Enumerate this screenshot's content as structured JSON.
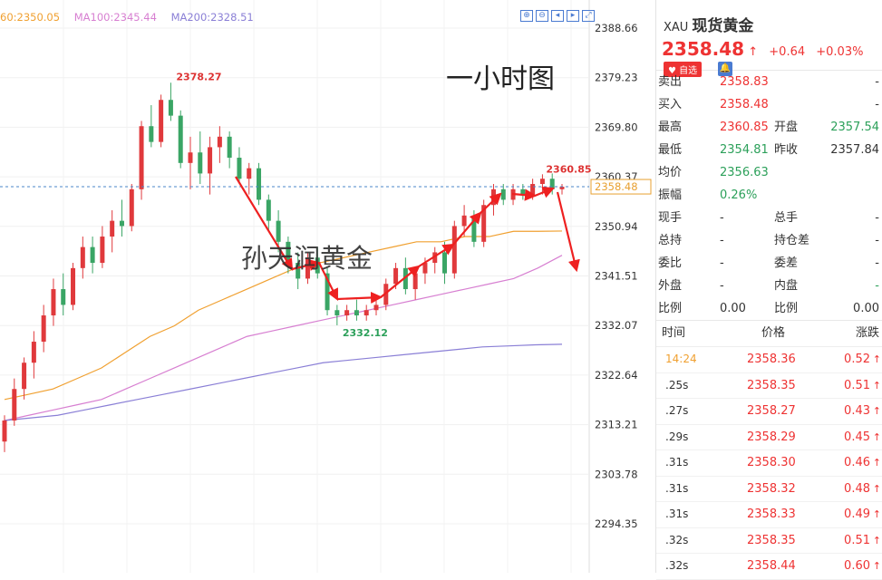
{
  "chart_data": {
    "type": "candlestick",
    "title": "一小时图",
    "watermark": "孙天润黄金",
    "ma_legend": [
      {
        "label": "60:2350.05",
        "color": "#f0a030"
      },
      {
        "label": "MA100:2345.44",
        "color": "#d77fd1"
      },
      {
        "label": "MA200:2328.51",
        "color": "#8a7fd6"
      }
    ],
    "y_ticks": [
      "2388.66",
      "2379.23",
      "2369.80",
      "2360.37",
      "2350.94",
      "2341.51",
      "2332.07",
      "2322.64",
      "2313.21",
      "2303.78",
      "2294.35"
    ],
    "ylim": [
      2294.35,
      2388.66
    ],
    "current_price_label": "2358.48",
    "current_price": 2358.48,
    "annotations": {
      "high": "2378.27",
      "low": "2332.12",
      "recent_high": "2360.85"
    },
    "candles": [
      [
        2310,
        2315,
        2308,
        2314
      ],
      [
        2314,
        2322,
        2313,
        2320
      ],
      [
        2320,
        2326,
        2318,
        2325
      ],
      [
        2325,
        2331,
        2322,
        2329
      ],
      [
        2329,
        2336,
        2327,
        2334
      ],
      [
        2334,
        2341,
        2332,
        2339
      ],
      [
        2339,
        2342,
        2334,
        2336
      ],
      [
        2336,
        2344,
        2335,
        2343
      ],
      [
        2343,
        2349,
        2341,
        2347
      ],
      [
        2347,
        2349,
        2342,
        2344
      ],
      [
        2344,
        2351,
        2343,
        2349
      ],
      [
        2349,
        2354,
        2346,
        2352
      ],
      [
        2352,
        2356,
        2349,
        2351
      ],
      [
        2351,
        2359,
        2350,
        2358
      ],
      [
        2358,
        2371,
        2356,
        2370
      ],
      [
        2370,
        2374,
        2366,
        2367
      ],
      [
        2367,
        2376,
        2366,
        2375
      ],
      [
        2375,
        2378.27,
        2371,
        2372
      ],
      [
        2372,
        2373,
        2362,
        2363
      ],
      [
        2363,
        2368,
        2358,
        2365
      ],
      [
        2365,
        2369,
        2359,
        2361
      ],
      [
        2361,
        2368,
        2357,
        2366
      ],
      [
        2366,
        2370,
        2363,
        2368
      ],
      [
        2368,
        2369,
        2362,
        2364
      ],
      [
        2364,
        2366,
        2359,
        2360
      ],
      [
        2360,
        2363,
        2357,
        2362
      ],
      [
        2362,
        2363,
        2355,
        2356
      ],
      [
        2356,
        2357,
        2350,
        2352
      ],
      [
        2352,
        2354,
        2346,
        2348
      ],
      [
        2348,
        2349,
        2342,
        2344
      ],
      [
        2344,
        2346,
        2339,
        2341
      ],
      [
        2341,
        2346,
        2340,
        2345
      ],
      [
        2345,
        2347,
        2341,
        2342
      ],
      [
        2342,
        2343,
        2334,
        2335
      ],
      [
        2335,
        2336,
        2332.12,
        2334
      ],
      [
        2334,
        2336,
        2333,
        2335
      ],
      [
        2335,
        2337,
        2333,
        2334
      ],
      [
        2334,
        2336,
        2333,
        2335
      ],
      [
        2335,
        2337,
        2334,
        2336
      ],
      [
        2336,
        2341,
        2335,
        2340
      ],
      [
        2340,
        2344,
        2339,
        2343
      ],
      [
        2343,
        2345,
        2338,
        2339
      ],
      [
        2339,
        2343,
        2337,
        2342
      ],
      [
        2342,
        2345,
        2340,
        2344
      ],
      [
        2344,
        2347,
        2342,
        2346
      ],
      [
        2346,
        2348,
        2340,
        2342
      ],
      [
        2342,
        2352,
        2341,
        2351
      ],
      [
        2351,
        2355,
        2349,
        2353
      ],
      [
        2353,
        2354,
        2347,
        2348
      ],
      [
        2348,
        2356,
        2347,
        2355
      ],
      [
        2355,
        2359,
        2353,
        2358
      ],
      [
        2358,
        2359,
        2355,
        2356
      ],
      [
        2356,
        2359,
        2355,
        2358
      ],
      [
        2358,
        2359,
        2356,
        2357
      ],
      [
        2357,
        2360,
        2356,
        2359
      ],
      [
        2359,
        2360.85,
        2357,
        2360
      ],
      [
        2360,
        2361,
        2357,
        2358
      ],
      [
        2358,
        2359,
        2357,
        2358.48
      ]
    ],
    "ma_lines": [
      {
        "color": "#f0a030",
        "values": [
          2318,
          2319,
          2320,
          2322,
          2324,
          2327,
          2330,
          2332,
          2335,
          2337,
          2339,
          2341,
          2343,
          2344,
          2345,
          2346,
          2347,
          2348,
          2348,
          2349,
          2349,
          2350,
          2350,
          2350.05
        ]
      },
      {
        "color": "#d77fd1",
        "values": [
          2314,
          2315,
          2316,
          2317,
          2318,
          2320,
          2322,
          2324,
          2326,
          2328,
          2330,
          2331,
          2332,
          2333,
          2334,
          2335,
          2336,
          2337,
          2338,
          2339,
          2340,
          2341,
          2343,
          2345.44
        ]
      },
      {
        "color": "#8a7fd6",
        "values": [
          2314,
          2314.5,
          2315,
          2316,
          2317,
          2318,
          2319,
          2320,
          2321,
          2322,
          2323,
          2324,
          2325,
          2325.5,
          2326,
          2326.5,
          2327,
          2327.5,
          2328,
          2328.2,
          2328.4,
          2328.51
        ]
      }
    ]
  },
  "side": {
    "symbol": "XAU",
    "name": "现货黄金",
    "price": "2358.48",
    "arrow": "↑",
    "change": "+0.64",
    "change_pct": "+0.03%",
    "fav_label": "♥ 自选",
    "rows": [
      {
        "l1": "卖出",
        "v1": "2358.83",
        "c1": "red",
        "l2": "",
        "v2": "-",
        "c2": ""
      },
      {
        "l1": "买入",
        "v1": "2358.48",
        "c1": "red",
        "l2": "",
        "v2": "-",
        "c2": ""
      },
      {
        "l1": "最高",
        "v1": "2360.85",
        "c1": "red",
        "l2": "开盘",
        "v2": "2357.54",
        "c2": "green"
      },
      {
        "l1": "最低",
        "v1": "2354.81",
        "c1": "green",
        "l2": "昨收",
        "v2": "2357.84",
        "c2": ""
      },
      {
        "l1": "均价",
        "v1": "2356.63",
        "c1": "green",
        "l2": "",
        "v2": "",
        "c2": ""
      },
      {
        "l1": "振幅",
        "v1": "0.26%",
        "c1": "green",
        "l2": "",
        "v2": "",
        "c2": ""
      },
      {
        "l1": "现手",
        "v1": "-",
        "c1": "",
        "l2": "总手",
        "v2": "-",
        "c2": ""
      },
      {
        "l1": "总持",
        "v1": "-",
        "c1": "",
        "l2": "持仓差",
        "v2": "-",
        "c2": ""
      },
      {
        "l1": "委比",
        "v1": "-",
        "c1": "",
        "l2": "委差",
        "v2": "-",
        "c2": ""
      },
      {
        "l1": "外盘",
        "v1": "-",
        "c1": "",
        "l2": "内盘",
        "v2": "-",
        "c2": "green"
      },
      {
        "l1": "比例",
        "v1": "0.00",
        "c1": "",
        "l2": "比例",
        "v2": "0.00",
        "c2": ""
      }
    ],
    "trades_header": {
      "time": "时间",
      "price": "价格",
      "change": "涨跌"
    },
    "trades": [
      {
        "time": "14:24",
        "price": "2358.36",
        "chg": "0.52"
      },
      {
        "time": ".25s",
        "price": "2358.35",
        "chg": "0.51"
      },
      {
        "time": ".27s",
        "price": "2358.27",
        "chg": "0.43"
      },
      {
        "time": ".29s",
        "price": "2358.29",
        "chg": "0.45"
      },
      {
        "time": ".31s",
        "price": "2358.30",
        "chg": "0.46"
      },
      {
        "time": ".31s",
        "price": "2358.32",
        "chg": "0.48"
      },
      {
        "time": ".31s",
        "price": "2358.33",
        "chg": "0.49"
      },
      {
        "time": ".32s",
        "price": "2358.35",
        "chg": "0.51"
      },
      {
        "time": ".32s",
        "price": "2358.44",
        "chg": "0.60"
      }
    ]
  }
}
